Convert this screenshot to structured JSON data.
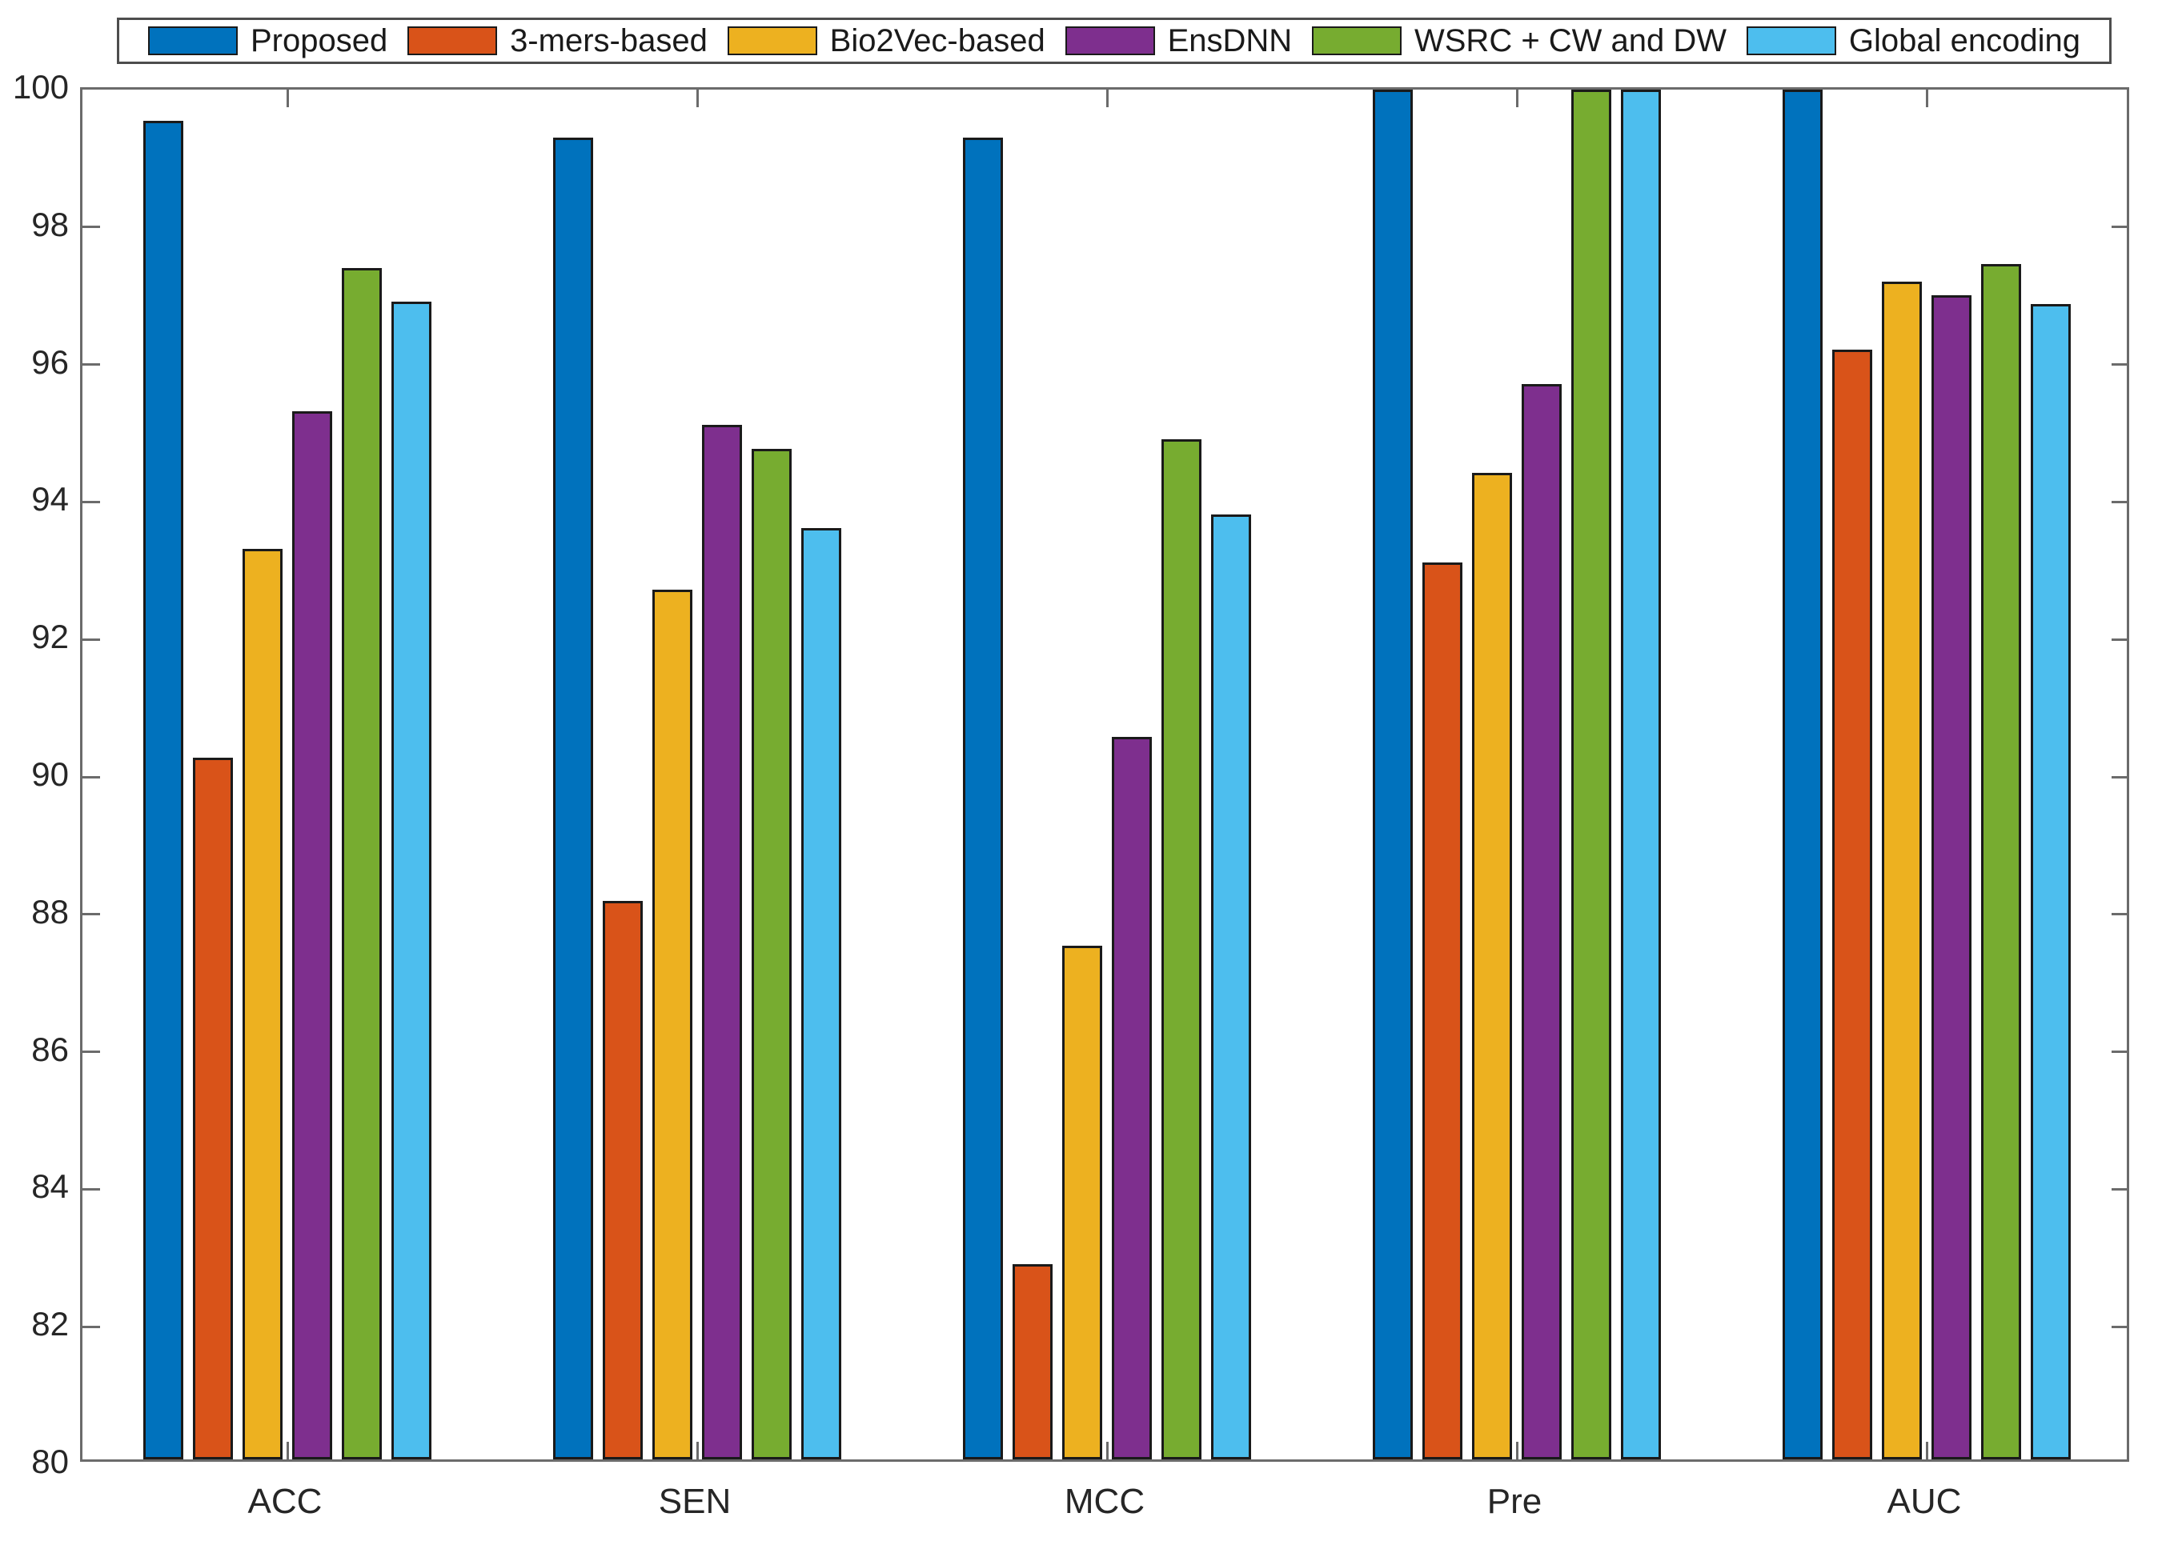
{
  "chart_data": {
    "type": "bar",
    "title": "",
    "xlabel": "",
    "ylabel": "",
    "categories": [
      "ACC",
      "SEN",
      "MCC",
      "Pre",
      "AUC"
    ],
    "series": [
      {
        "name": "Proposed",
        "color": "#0072BD",
        "values": [
          99.55,
          99.3,
          99.3,
          100,
          100
        ]
      },
      {
        "name": "3-mers-based",
        "color": "#D95319",
        "values": [
          90.25,
          88.15,
          82.85,
          93.1,
          96.2
        ]
      },
      {
        "name": "Bio2Vec-based",
        "color": "#EDB120",
        "values": [
          93.3,
          92.7,
          87.5,
          94.4,
          97.2
        ]
      },
      {
        "name": "EnsDNN",
        "color": "#7E2F8E",
        "values": [
          95.3,
          95.1,
          90.55,
          95.7,
          97.0
        ]
      },
      {
        "name": "WSRC + CW and DW",
        "color": "#77AC30",
        "values": [
          97.4,
          94.75,
          94.9,
          100,
          97.45
        ]
      },
      {
        "name": "Global encoding",
        "color": "#4DBEEE",
        "values": [
          96.9,
          93.6,
          93.8,
          100,
          96.87
        ]
      }
    ],
    "ylim": [
      80,
      100
    ],
    "yticks": [
      80,
      82,
      84,
      86,
      88,
      90,
      92,
      94,
      96,
      98,
      100
    ],
    "grid": false,
    "legend_position": "top",
    "spine_color": "#6b6b6b",
    "bar_border_color": "#1a1a1a",
    "tick_label_color": "#262626"
  }
}
